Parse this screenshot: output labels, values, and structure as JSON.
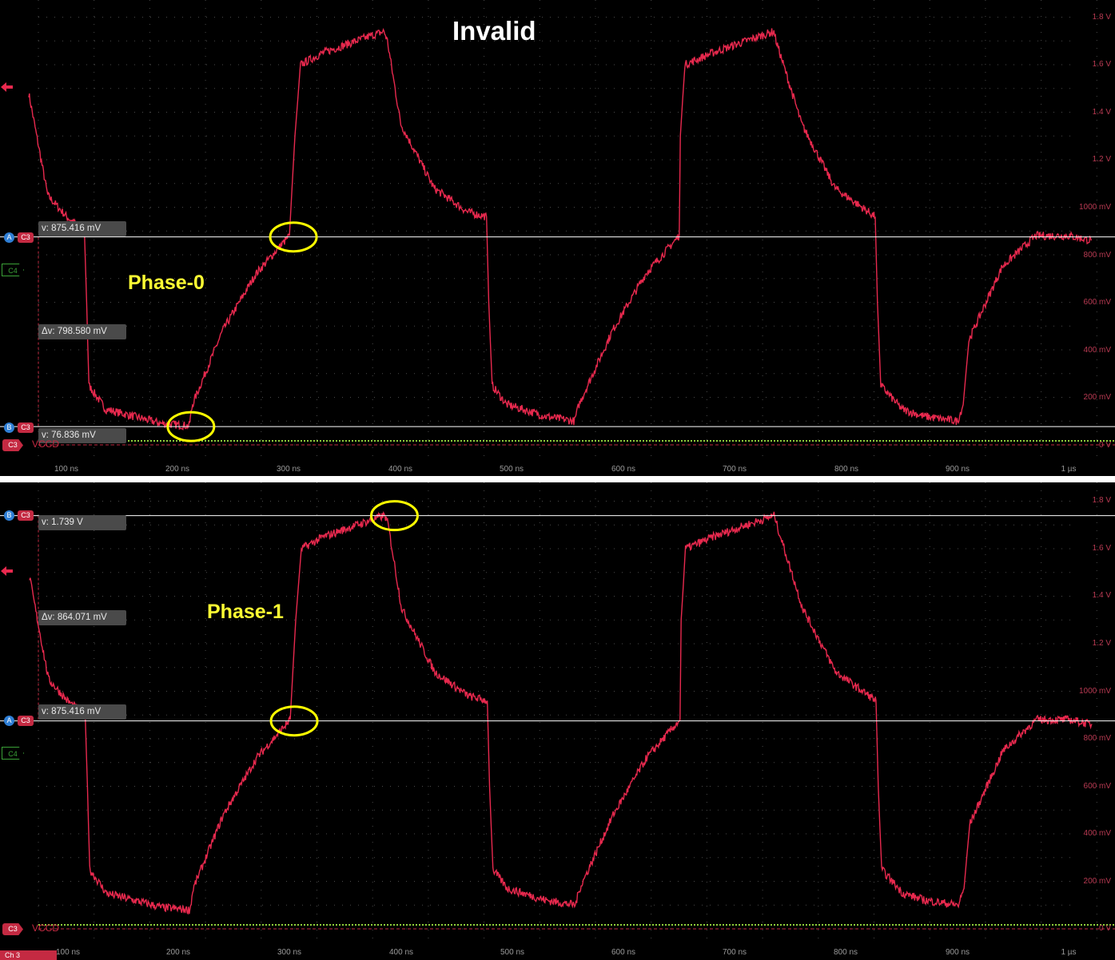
{
  "title": "Invalid",
  "colors": {
    "trace": "#e8294e",
    "cursor": "#ffffff",
    "highlight": "#ffff00",
    "ch4": "#8fcf3a",
    "grid": "#4a4a4a"
  },
  "y_ticks": [
    "1.8 V",
    "1.6 V",
    "1.4 V",
    "1.2 V",
    "1000 mV",
    "800 mV",
    "600 mV",
    "400 mV",
    "200 mV",
    "0 V"
  ],
  "x_ticks": [
    "100 ns",
    "200 ns",
    "300 ns",
    "400 ns",
    "500 ns",
    "600 ns",
    "700 ns",
    "800 ns",
    "900 ns",
    "1 µs"
  ],
  "panels": [
    {
      "phase_label": "Phase-0",
      "cursor_a": {
        "badge": "A",
        "channel": "C3",
        "readout": "v: 875.416 mV"
      },
      "cursor_b": {
        "badge": "B",
        "channel": "C3",
        "readout": "v: 76.836 mV"
      },
      "delta": "Δv: 798.580 mV",
      "ch4_label": "C4",
      "ref_channel": "C3",
      "ref_name": "VCCD"
    },
    {
      "phase_label": "Phase-1",
      "cursor_a": {
        "badge": "A",
        "channel": "C3",
        "readout": "v: 875.416 mV"
      },
      "cursor_b": {
        "badge": "B",
        "channel": "C3",
        "readout": "v: 1.739 V"
      },
      "delta": "Δv: 864.071 mV",
      "ch4_label": "C4",
      "ref_channel": "C3",
      "ref_name": "VCCD"
    }
  ],
  "status_tab": "Ch 3",
  "chart_data": [
    {
      "type": "line",
      "title": "Invalid",
      "xlabel": "",
      "ylabel": "",
      "x_unit": "ns",
      "y_unit": "V",
      "xlim": [
        66,
        1020
      ],
      "ylim": [
        0,
        1.85
      ],
      "grid": true,
      "cursors_v": [
        0.875416,
        0.076836
      ],
      "highlighted_points": [
        {
          "x": 208,
          "y": 0.077
        },
        {
          "x": 300,
          "y": 0.875
        }
      ],
      "series": [
        {
          "name": "C3",
          "x": [
            66,
            83,
            100,
            116,
            118,
            120,
            135,
            160,
            185,
            210,
            213,
            240,
            270,
            300,
            305,
            310,
            330,
            360,
            385,
            388,
            400,
            430,
            460,
            477,
            479,
            482,
            495,
            530,
            556,
            560,
            590,
            620,
            650,
            651,
            655,
            680,
            710,
            735,
            737,
            760,
            790,
            820,
            826,
            828,
            831,
            850,
            870,
            900,
            905,
            910,
            940,
            970,
            1000,
            1020
          ],
          "y": [
            1.48,
            1.05,
            0.96,
            0.9,
            0.6,
            0.25,
            0.15,
            0.12,
            0.09,
            0.08,
            0.17,
            0.48,
            0.72,
            0.88,
            1.3,
            1.6,
            1.65,
            1.7,
            1.74,
            1.7,
            1.35,
            1.08,
            0.98,
            0.96,
            0.6,
            0.25,
            0.17,
            0.12,
            0.1,
            0.17,
            0.48,
            0.72,
            0.88,
            1.3,
            1.6,
            1.65,
            1.7,
            1.74,
            1.7,
            1.35,
            1.08,
            0.98,
            0.96,
            0.6,
            0.25,
            0.15,
            0.12,
            0.1,
            0.17,
            0.44,
            0.75,
            0.88,
            0.88,
            0.86
          ]
        },
        {
          "name": "C4",
          "x": [
            66,
            1020
          ],
          "y": [
            0.02,
            0.02
          ]
        }
      ]
    },
    {
      "type": "line",
      "title": "",
      "xlabel": "",
      "ylabel": "",
      "x_unit": "ns",
      "y_unit": "V",
      "xlim": [
        66,
        1020
      ],
      "ylim": [
        0,
        1.85
      ],
      "grid": true,
      "cursors_v": [
        0.875416,
        1.739
      ],
      "highlighted_points": [
        {
          "x": 300,
          "y": 0.875
        },
        {
          "x": 390,
          "y": 1.739
        }
      ],
      "series": [
        {
          "name": "C3",
          "x": [
            66,
            83,
            100,
            116,
            118,
            120,
            135,
            160,
            185,
            210,
            213,
            240,
            270,
            300,
            305,
            310,
            330,
            360,
            385,
            388,
            400,
            430,
            460,
            477,
            479,
            482,
            495,
            530,
            556,
            560,
            590,
            620,
            650,
            651,
            655,
            680,
            710,
            735,
            737,
            760,
            790,
            820,
            826,
            828,
            831,
            850,
            870,
            900,
            905,
            910,
            940,
            970,
            1000,
            1020
          ],
          "y": [
            1.48,
            1.05,
            0.96,
            0.9,
            0.6,
            0.25,
            0.15,
            0.12,
            0.09,
            0.08,
            0.17,
            0.48,
            0.72,
            0.88,
            1.3,
            1.6,
            1.65,
            1.7,
            1.74,
            1.7,
            1.35,
            1.08,
            0.98,
            0.96,
            0.6,
            0.25,
            0.17,
            0.12,
            0.1,
            0.17,
            0.48,
            0.72,
            0.88,
            1.3,
            1.6,
            1.65,
            1.7,
            1.74,
            1.7,
            1.35,
            1.08,
            0.98,
            0.96,
            0.6,
            0.25,
            0.15,
            0.12,
            0.1,
            0.17,
            0.44,
            0.75,
            0.88,
            0.88,
            0.86
          ]
        },
        {
          "name": "C4",
          "x": [
            66,
            1020
          ],
          "y": [
            0.02,
            0.02
          ]
        }
      ]
    }
  ]
}
